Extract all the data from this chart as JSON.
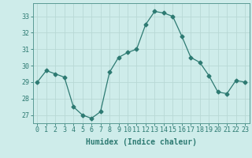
{
  "x": [
    0,
    1,
    2,
    3,
    4,
    5,
    6,
    7,
    8,
    9,
    10,
    11,
    12,
    13,
    14,
    15,
    16,
    17,
    18,
    19,
    20,
    21,
    22,
    23
  ],
  "y": [
    29.0,
    29.7,
    29.5,
    29.3,
    27.5,
    27.0,
    26.8,
    27.2,
    29.6,
    30.5,
    30.8,
    31.0,
    32.5,
    33.3,
    33.2,
    33.0,
    31.8,
    30.5,
    30.2,
    29.4,
    28.4,
    28.3,
    29.1,
    29.0
  ],
  "line_color": "#2d7a72",
  "marker": "D",
  "marker_size": 2.5,
  "bg_color": "#ceecea",
  "grid_color": "#b8d8d5",
  "xlabel": "Humidex (Indice chaleur)",
  "ylim": [
    26.5,
    33.8
  ],
  "xlim": [
    -0.5,
    23.5
  ],
  "yticks": [
    27,
    28,
    29,
    30,
    31,
    32,
    33
  ],
  "xticks": [
    0,
    1,
    2,
    3,
    4,
    5,
    6,
    7,
    8,
    9,
    10,
    11,
    12,
    13,
    14,
    15,
    16,
    17,
    18,
    19,
    20,
    21,
    22,
    23
  ],
  "tick_color": "#2d7a72",
  "label_fontsize": 7,
  "tick_fontsize": 6,
  "spine_color": "#5a9a94",
  "linewidth": 0.9
}
